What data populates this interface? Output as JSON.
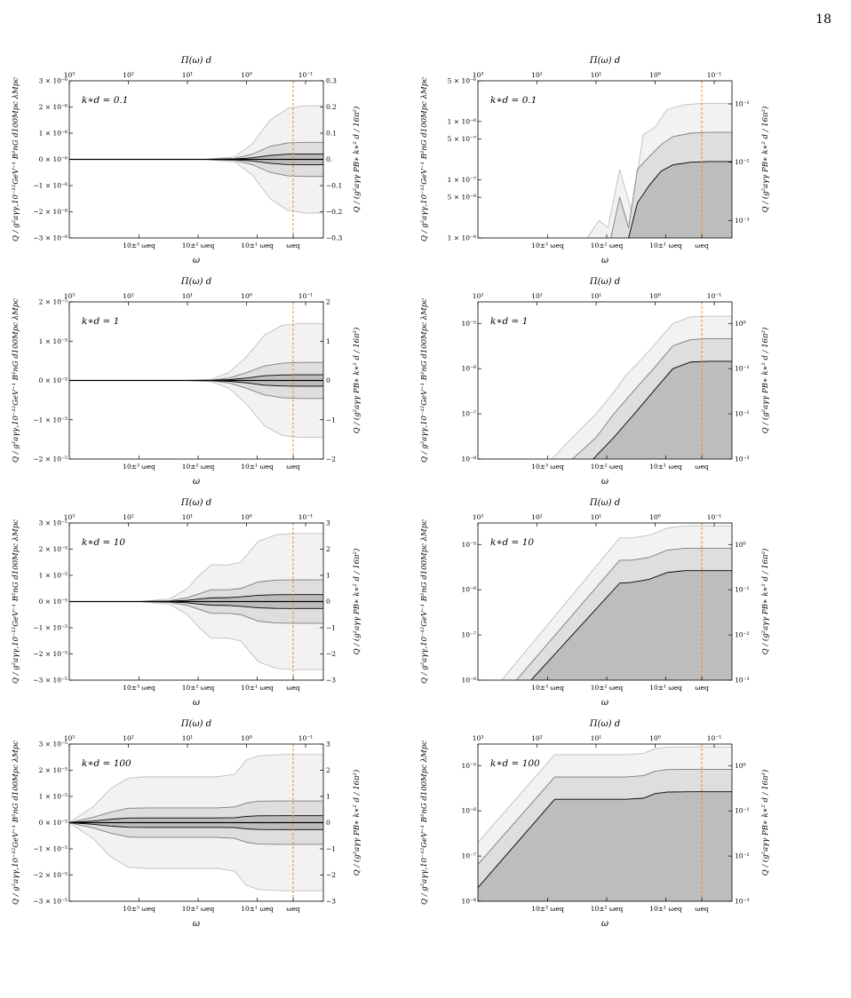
{
  "page_number": "18",
  "chart_data": [
    {
      "id": "p1",
      "type": "area",
      "scale": "linear",
      "label": "k∗d = 0.1",
      "left_ticks": [
        "3 × 10⁻⁶",
        "2 × 10⁻⁶",
        "1 × 10⁻⁶",
        "0 × 10⁻⁶",
        "−1 × 10⁻⁶",
        "−2 × 10⁻⁶",
        "−3 × 10⁻⁶"
      ],
      "right_ticks": [
        "0.3",
        "0.2",
        "0.1",
        "0.",
        "−0.1",
        "−0.2",
        "−0.3"
      ],
      "ylim": [
        -3e-06,
        3e-06
      ],
      "bands": [
        {
          "x": [
            -4,
            -1.7,
            -1.2,
            -0.9,
            -0.6,
            -0.3,
            0,
            0.3
          ],
          "y": [
            0,
            0,
            1e-07,
            6e-07,
            1.5e-06,
            1.95e-06,
            2.05e-06,
            2.05e-06
          ]
        },
        {
          "x": [
            -4,
            -1.7,
            -1.2,
            -0.9,
            -0.6,
            -0.3,
            0,
            0.3
          ],
          "y": [
            0,
            0,
            4e-08,
            2e-07,
            5e-07,
            6.3e-07,
            6.5e-07,
            6.5e-07
          ]
        },
        {
          "x": [
            -4,
            -1.7,
            -1.2,
            -0.9,
            -0.6,
            -0.3,
            0,
            0.3
          ],
          "y": [
            0,
            0,
            1.5e-08,
            6e-08,
            1.5e-07,
            2e-07,
            2.05e-07,
            2.05e-07
          ]
        }
      ]
    },
    {
      "id": "p2",
      "type": "area",
      "scale": "log",
      "label": "k∗d = 0.1",
      "left_ticks": [
        "5 × 10⁻⁶",
        "1 × 10⁻⁶",
        "5 × 10⁻⁷",
        "1 × 10⁻⁷",
        "5 × 10⁻⁸",
        "1 × 10⁻⁸"
      ],
      "left_tick_values": [
        5e-06,
        1e-06,
        5e-07,
        1e-07,
        5e-08,
        1e-08
      ],
      "right_ticks": [
        "10⁻¹",
        "10⁻²",
        "10⁻³"
      ],
      "right_tick_values": [
        2e-06,
        2e-07,
        2e-08
      ],
      "ylim": [
        1e-08,
        5e-06
      ],
      "bands": [
        {
          "x": [
            -2.15,
            -1.95,
            -1.8,
            -1.6,
            -1.4,
            -1.2,
            -1.0,
            -0.8,
            -0.5,
            -0.2,
            0,
            0.3
          ],
          "y": [
            1e-08,
            2e-08,
            1.5e-08,
            1.5e-07,
            3e-08,
            6e-07,
            8e-07,
            1.6e-06,
            1.95e-06,
            2.05e-06,
            2.05e-06,
            2.05e-06
          ]
        },
        {
          "x": [
            -1.75,
            -1.6,
            -1.45,
            -1.3,
            -1.1,
            -0.9,
            -0.7,
            -0.4,
            -0.1,
            0.3
          ],
          "y": [
            1e-08,
            5e-08,
            1.5e-08,
            1.5e-07,
            2.5e-07,
            4e-07,
            5.5e-07,
            6.3e-07,
            6.5e-07,
            6.5e-07
          ]
        },
        {
          "x": [
            -1.45,
            -1.3,
            -1.1,
            -0.9,
            -0.7,
            -0.4,
            -0.1,
            0.3
          ],
          "y": [
            1e-08,
            4e-08,
            8e-08,
            1.4e-07,
            1.8e-07,
            2e-07,
            2.05e-07,
            2.05e-07
          ]
        }
      ]
    },
    {
      "id": "p3",
      "type": "area",
      "scale": "linear",
      "label": "k∗d = 1",
      "left_ticks": [
        "2 × 10⁻⁵",
        "1 × 10⁻⁵",
        "0 × 10⁻⁵",
        "−1 × 10⁻⁵",
        "−2 × 10⁻⁵"
      ],
      "right_ticks": [
        "2",
        "1",
        "0",
        "−1",
        "−2"
      ],
      "ylim": [
        -2e-05,
        2e-05
      ],
      "bands": [
        {
          "x": [
            -4,
            -2.0,
            -1.6,
            -1.3,
            -1.0,
            -0.7,
            -0.4,
            -0.1,
            0.3
          ],
          "y": [
            0,
            0,
            3e-07,
            2e-06,
            6e-06,
            1.15e-05,
            1.4e-05,
            1.45e-05,
            1.45e-05
          ]
        },
        {
          "x": [
            -4,
            -2.0,
            -1.6,
            -1.3,
            -1.0,
            -0.7,
            -0.4,
            -0.1,
            0.3
          ],
          "y": [
            0,
            0,
            1e-07,
            6e-07,
            2e-06,
            3.7e-06,
            4.4e-06,
            4.6e-06,
            4.6e-06
          ]
        },
        {
          "x": [
            -4,
            -2.0,
            -1.6,
            -1.3,
            -1.0,
            -0.7,
            -0.4,
            -0.1,
            0.3
          ],
          "y": [
            0,
            0,
            4e-08,
            2e-07,
            6e-07,
            1.2e-06,
            1.4e-06,
            1.45e-06,
            1.45e-06
          ]
        }
      ]
    },
    {
      "id": "p4",
      "type": "area",
      "scale": "log",
      "label": "k∗d = 1",
      "left_ticks": [
        "10⁻⁵",
        "10⁻⁶",
        "10⁻⁷",
        "10⁻⁸"
      ],
      "left_tick_values": [
        1e-05,
        1e-06,
        1e-07,
        1e-08
      ],
      "right_ticks": [
        "10⁰",
        "10⁻¹",
        "10⁻²",
        "10⁻³"
      ],
      "right_tick_values": [
        1e-05,
        1e-06,
        1e-07,
        1e-08
      ],
      "ylim": [
        1e-08,
        3e-05
      ],
      "bands": [
        {
          "x": [
            -2.75,
            -2.4,
            -2.0,
            -1.7,
            -1.5,
            -1.3,
            -1.0,
            -0.7,
            -0.4,
            -0.1,
            0.3
          ],
          "y": [
            1e-08,
            3e-08,
            1e-07,
            3e-07,
            7e-07,
            1.3e-06,
            3.5e-06,
            1e-05,
            1.4e-05,
            1.45e-05,
            1.45e-05
          ]
        },
        {
          "x": [
            -2.4,
            -2.0,
            -1.7,
            -1.5,
            -1.3,
            -1.0,
            -0.7,
            -0.4,
            -0.1,
            0.3
          ],
          "y": [
            1e-08,
            3e-08,
            1e-07,
            2e-07,
            4e-07,
            1.1e-06,
            3.2e-06,
            4.4e-06,
            4.6e-06,
            4.6e-06
          ]
        },
        {
          "x": [
            -2.05,
            -1.7,
            -1.5,
            -1.3,
            -1.0,
            -0.7,
            -0.4,
            -0.1,
            0.3
          ],
          "y": [
            1e-08,
            3e-08,
            6e-08,
            1.2e-07,
            3.5e-07,
            1e-06,
            1.4e-06,
            1.45e-06,
            1.45e-06
          ]
        }
      ]
    },
    {
      "id": "p5",
      "type": "area",
      "scale": "linear",
      "label": "k∗d = 10",
      "left_ticks": [
        "3 × 10⁻⁵",
        "2 × 10⁻⁵",
        "1 × 10⁻⁵",
        "0 × 10⁻⁵",
        "−1 × 10⁻⁵",
        "−2 × 10⁻⁵",
        "−3 × 10⁻⁵"
      ],
      "right_ticks": [
        "3",
        "2",
        "1",
        "0",
        "−1",
        "−2",
        "−3"
      ],
      "ylim": [
        -3e-05,
        3e-05
      ],
      "bands": [
        {
          "x": [
            -4,
            -2.8,
            -2.3,
            -2.0,
            -1.8,
            -1.6,
            -1.3,
            -1.1,
            -0.8,
            -0.5,
            -0.2,
            0.3
          ],
          "y": [
            0,
            0,
            1e-06,
            5e-06,
            1e-05,
            1.4e-05,
            1.4e-05,
            1.5e-05,
            2.3e-05,
            2.55e-05,
            2.6e-05,
            2.6e-05
          ]
        },
        {
          "x": [
            -4,
            -2.8,
            -2.3,
            -2.0,
            -1.8,
            -1.6,
            -1.3,
            -1.1,
            -0.8,
            -0.5,
            -0.2,
            0.3
          ],
          "y": [
            0,
            0,
            3e-07,
            1.5e-06,
            3e-06,
            4.5e-06,
            4.5e-06,
            5e-06,
            7.5e-06,
            8.2e-06,
            8.3e-06,
            8.3e-06
          ]
        },
        {
          "x": [
            -4,
            -2.8,
            -2.3,
            -2.0,
            -1.8,
            -1.6,
            -1.3,
            -1.1,
            -0.8,
            -0.5,
            -0.2,
            0.3
          ],
          "y": [
            0,
            0,
            1e-07,
            5e-07,
            1e-06,
            1.4e-06,
            1.5e-06,
            1.8e-06,
            2.4e-06,
            2.6e-06,
            2.65e-06,
            2.65e-06
          ]
        }
      ]
    },
    {
      "id": "p6",
      "type": "area",
      "scale": "log",
      "label": "k∗d = 10",
      "left_ticks": [
        "10⁻⁵",
        "10⁻⁶",
        "10⁻⁷",
        "10⁻⁸"
      ],
      "left_tick_values": [
        1e-05,
        1e-06,
        1e-07,
        1e-08
      ],
      "right_ticks": [
        "10⁰",
        "10⁻¹",
        "10⁻²",
        "10⁻³"
      ],
      "right_tick_values": [
        1e-05,
        1e-06,
        1e-07,
        1e-08
      ],
      "ylim": [
        1e-08,
        3e-05
      ],
      "bands": [
        {
          "x": [
            -3.6,
            -1.6,
            -1.4,
            -1.1,
            -0.8,
            -0.5,
            0.3
          ],
          "y": [
            1e-08,
            1.4e-05,
            1.4e-05,
            1.6e-05,
            2.3e-05,
            2.6e-05,
            2.6e-05
          ]
        },
        {
          "x": [
            -3.35,
            -1.6,
            -1.4,
            -1.1,
            -0.8,
            -0.5,
            0.3
          ],
          "y": [
            1e-08,
            4.5e-06,
            4.5e-06,
            5.2e-06,
            7.5e-06,
            8.3e-06,
            8.3e-06
          ]
        },
        {
          "x": [
            -3.1,
            -1.6,
            -1.4,
            -1.1,
            -0.8,
            -0.5,
            0.3
          ],
          "y": [
            1e-08,
            1.4e-06,
            1.45e-06,
            1.7e-06,
            2.4e-06,
            2.65e-06,
            2.65e-06
          ]
        }
      ]
    },
    {
      "id": "p7",
      "type": "area",
      "scale": "linear",
      "label": "k∗d = 100",
      "left_ticks": [
        "3 × 10⁻⁵",
        "2 × 10⁻⁵",
        "1 × 10⁻⁵",
        "0 × 10⁻⁵",
        "−1 × 10⁻⁵",
        "−2 × 10⁻⁵",
        "−3 × 10⁻⁵"
      ],
      "right_ticks": [
        "3",
        "2",
        "1",
        "0",
        "−1",
        "−2",
        "−3"
      ],
      "ylim": [
        -3e-05,
        3e-05
      ],
      "bands": [
        {
          "x": [
            -4,
            -3.6,
            -3.3,
            -3.0,
            -2.7,
            -1.5,
            -1.2,
            -1.0,
            -0.8,
            -0.4,
            0.3
          ],
          "y": [
            0,
            6e-06,
            1.3e-05,
            1.7e-05,
            1.75e-05,
            1.75e-05,
            1.85e-05,
            2.4e-05,
            2.55e-05,
            2.6e-05,
            2.6e-05
          ]
        },
        {
          "x": [
            -4,
            -3.6,
            -3.3,
            -3.0,
            -2.7,
            -1.5,
            -1.2,
            -1.0,
            -0.8,
            -0.4,
            0.3
          ],
          "y": [
            0,
            2e-06,
            4e-06,
            5.5e-06,
            5.6e-06,
            5.6e-06,
            6e-06,
            7.5e-06,
            8.2e-06,
            8.3e-06,
            8.3e-06
          ]
        },
        {
          "x": [
            -4,
            -3.6,
            -3.3,
            -3.0,
            -2.7,
            -1.5,
            -1.2,
            -1.0,
            -0.8,
            -0.4,
            0.3
          ],
          "y": [
            0,
            6e-07,
            1.3e-06,
            1.75e-06,
            1.8e-06,
            1.8e-06,
            1.9e-06,
            2.4e-06,
            2.6e-06,
            2.65e-06,
            2.65e-06
          ]
        }
      ]
    },
    {
      "id": "p8",
      "type": "area",
      "scale": "log",
      "label": "k∗d = 100",
      "left_ticks": [
        "10⁻⁵",
        "10⁻⁶",
        "10⁻⁷",
        "10⁻⁸"
      ],
      "left_tick_values": [
        1e-05,
        1e-06,
        1e-07,
        1e-08
      ],
      "right_ticks": [
        "10⁰",
        "10⁻¹",
        "10⁻²",
        "10⁻³"
      ],
      "right_tick_values": [
        1e-05,
        1e-06,
        1e-07,
        1e-08
      ],
      "ylim": [
        1e-08,
        3e-05
      ],
      "bands": [
        {
          "x": [
            -4,
            -2.7,
            -1.5,
            -1.2,
            -1.0,
            -0.8,
            -0.4,
            0.3
          ],
          "y": [
            2e-07,
            1.75e-05,
            1.75e-05,
            1.85e-05,
            2.4e-05,
            2.55e-05,
            2.6e-05,
            2.6e-05
          ]
        },
        {
          "x": [
            -4,
            -2.7,
            -1.5,
            -1.2,
            -1.0,
            -0.8,
            -0.4,
            0.3
          ],
          "y": [
            6.5e-08,
            5.6e-06,
            5.6e-06,
            6e-06,
            7.5e-06,
            8.2e-06,
            8.3e-06,
            8.3e-06
          ]
        },
        {
          "x": [
            -4,
            -2.7,
            -1.5,
            -1.2,
            -1.0,
            -0.8,
            -0.4,
            0.3
          ],
          "y": [
            2e-08,
            1.8e-06,
            1.8e-06,
            1.9e-06,
            2.4e-06,
            2.6e-06,
            2.65e-06,
            2.65e-06
          ]
        }
      ]
    }
  ],
  "shared": {
    "top_axis_title": "Π(ω) d",
    "top_ticks": [
      "10³",
      "10²",
      "10¹",
      "10⁰",
      "10⁻¹"
    ],
    "top_tick_positions": [
      -4,
      -3,
      -2,
      -1,
      0
    ],
    "bottom_axis_title": "ω",
    "bottom_ticks": [
      "10±³ ωeq",
      "10±² ωeq",
      "10±¹ ωeq",
      "ωeq"
    ],
    "bottom_tick_positions": [
      -3,
      -2,
      -1,
      0
    ],
    "xlim": [
      -4,
      0.3
    ],
    "eq_line_x": 0,
    "left_ylabel": "Q / g²aγγ,10⁻¹²GeV⁻¹ B²nG d100Mpc λMpc",
    "right_ylabel": "Q / (g²aγγ PB∗ k∗² d / 16π²)",
    "band_fills": [
      "#f2f2f2",
      "#dedede",
      "#bdbdbd"
    ],
    "band_strokes": [
      "#bfbfbf",
      "#7c7c7c",
      "#000000"
    ],
    "eq_line_color": "#f08a1e",
    "axis_color": "#000000"
  }
}
